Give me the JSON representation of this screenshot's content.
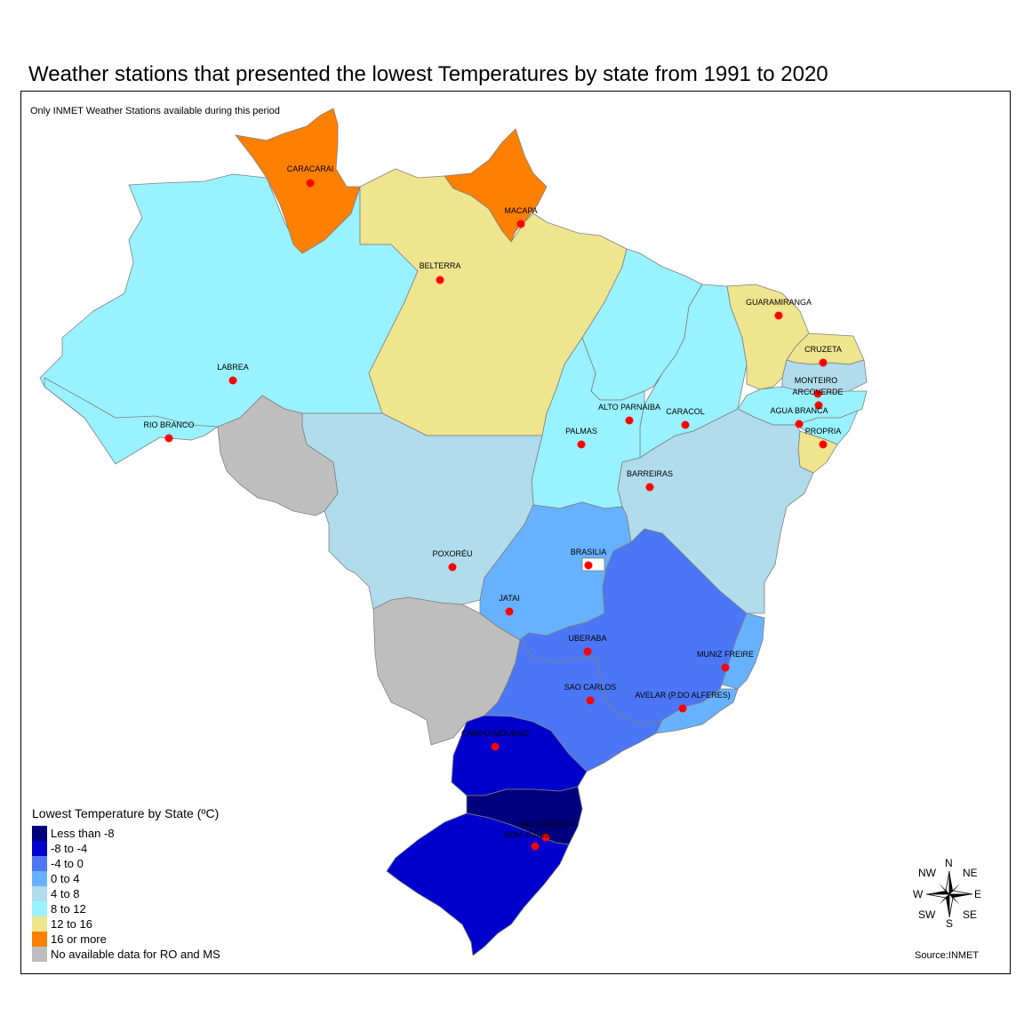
{
  "title": "Weather stations that presented the lowest Temperatures by state from 1991 to 2020",
  "subtitle": "Only INMET Weather Stations available during this period",
  "source": "Source:INMET",
  "colors": {
    "less_than_-8": "#00007F",
    "-8_to_-4": "#0000CC",
    "-4_to_0": "#4B77F6",
    "0_to_4": "#66B2FF",
    "4_to_8": "#B0DCEC",
    "8_to_12": "#99F2FF",
    "12_to_16": "#EFE58E",
    "16_or_more": "#FF8000",
    "no_data": "#BEBEBE",
    "station": "#FF0000"
  },
  "legend": {
    "title": "Lowest Temperature by State (ºC)",
    "items": [
      {
        "label": "Less than -8",
        "color": "#00007F"
      },
      {
        "label": "-8 to -4",
        "color": "#0000CC"
      },
      {
        "label": "-4 to 0",
        "color": "#4B77F6"
      },
      {
        "label": "0 to 4",
        "color": "#66B2FF"
      },
      {
        "label": "4 to 8",
        "color": "#B0DCEC"
      },
      {
        "label": "8 to 12",
        "color": "#99F2FF"
      },
      {
        "label": "12 to 16",
        "color": "#EFE58E"
      },
      {
        "label": "16 or more",
        "color": "#FF8000"
      },
      {
        "label": "No available data for RO and MS",
        "color": "#BEBEBE"
      }
    ]
  },
  "compass": {
    "n": "N",
    "s": "S",
    "e": "E",
    "w": "W",
    "ne": "NE",
    "nw": "NW",
    "se": "SE",
    "sw": "SW"
  },
  "stations": [
    {
      "name": "CARACARAI"
    },
    {
      "name": "MACAPA"
    },
    {
      "name": "BELTERRA"
    },
    {
      "name": "LABREA"
    },
    {
      "name": "RIO BRANCO"
    },
    {
      "name": "GUARAMIRANGA"
    },
    {
      "name": "CRUZETA"
    },
    {
      "name": "MONTEIRO"
    },
    {
      "name": "ARCOVERDE"
    },
    {
      "name": "AGUA BRANCA"
    },
    {
      "name": "PROPRIA"
    },
    {
      "name": "ALTO PARNAIBA"
    },
    {
      "name": "CARACOL"
    },
    {
      "name": "PALMAS"
    },
    {
      "name": "BARREIRAS"
    },
    {
      "name": "POXORÉU"
    },
    {
      "name": "BRASILIA"
    },
    {
      "name": "JATAI"
    },
    {
      "name": "UBERABA"
    },
    {
      "name": "MUNIZ FREIRE"
    },
    {
      "name": "SAO CARLOS"
    },
    {
      "name": "AVELAR (P.DO ALFERES)"
    },
    {
      "name": "CAMPO MOURAO"
    },
    {
      "name": "SAO JOAQUIM"
    },
    {
      "name": "BOM JESUS"
    }
  ]
}
